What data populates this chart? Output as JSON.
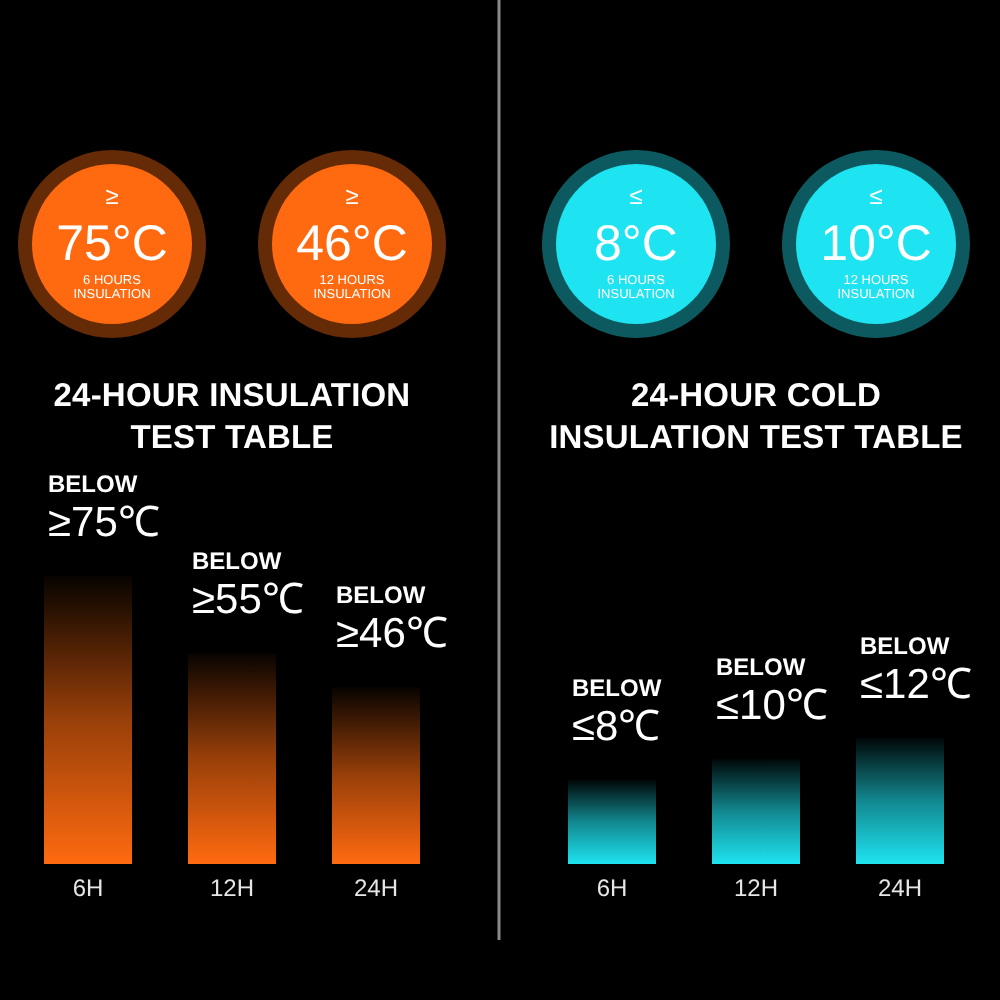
{
  "chart_data": [
    {
      "type": "bar",
      "title": "24-HOUR INSULATION\nTEST TABLE",
      "categories": [
        "6H",
        "12H",
        "24H"
      ],
      "values": [
        75,
        55,
        46
      ],
      "color": "#ff6a10",
      "value_labels": [
        "BELOW\n≥75℃",
        "BELOW\n≥55℃",
        "BELOW\n≥46℃"
      ],
      "annotations": [
        "≥\n75°C\n6 HOURS\nINSULATION",
        "≥\n46°C\n12 HOURS\nINSULATION"
      ]
    },
    {
      "type": "bar",
      "title": "24-HOUR COLD\nINSULATION TEST TABLE",
      "categories": [
        "6H",
        "12H",
        "24H"
      ],
      "values": [
        8,
        10,
        12
      ],
      "color": "#1ee3f0",
      "value_labels": [
        "BELOW\n≤8℃",
        "BELOW\n≤10℃",
        "BELOW\n≤12℃"
      ],
      "annotations": [
        "≤\n8°C\n6 HOURS\nINSULATION",
        "≤\n10°C\n12 HOURS\nINSULATION"
      ]
    }
  ]
}
